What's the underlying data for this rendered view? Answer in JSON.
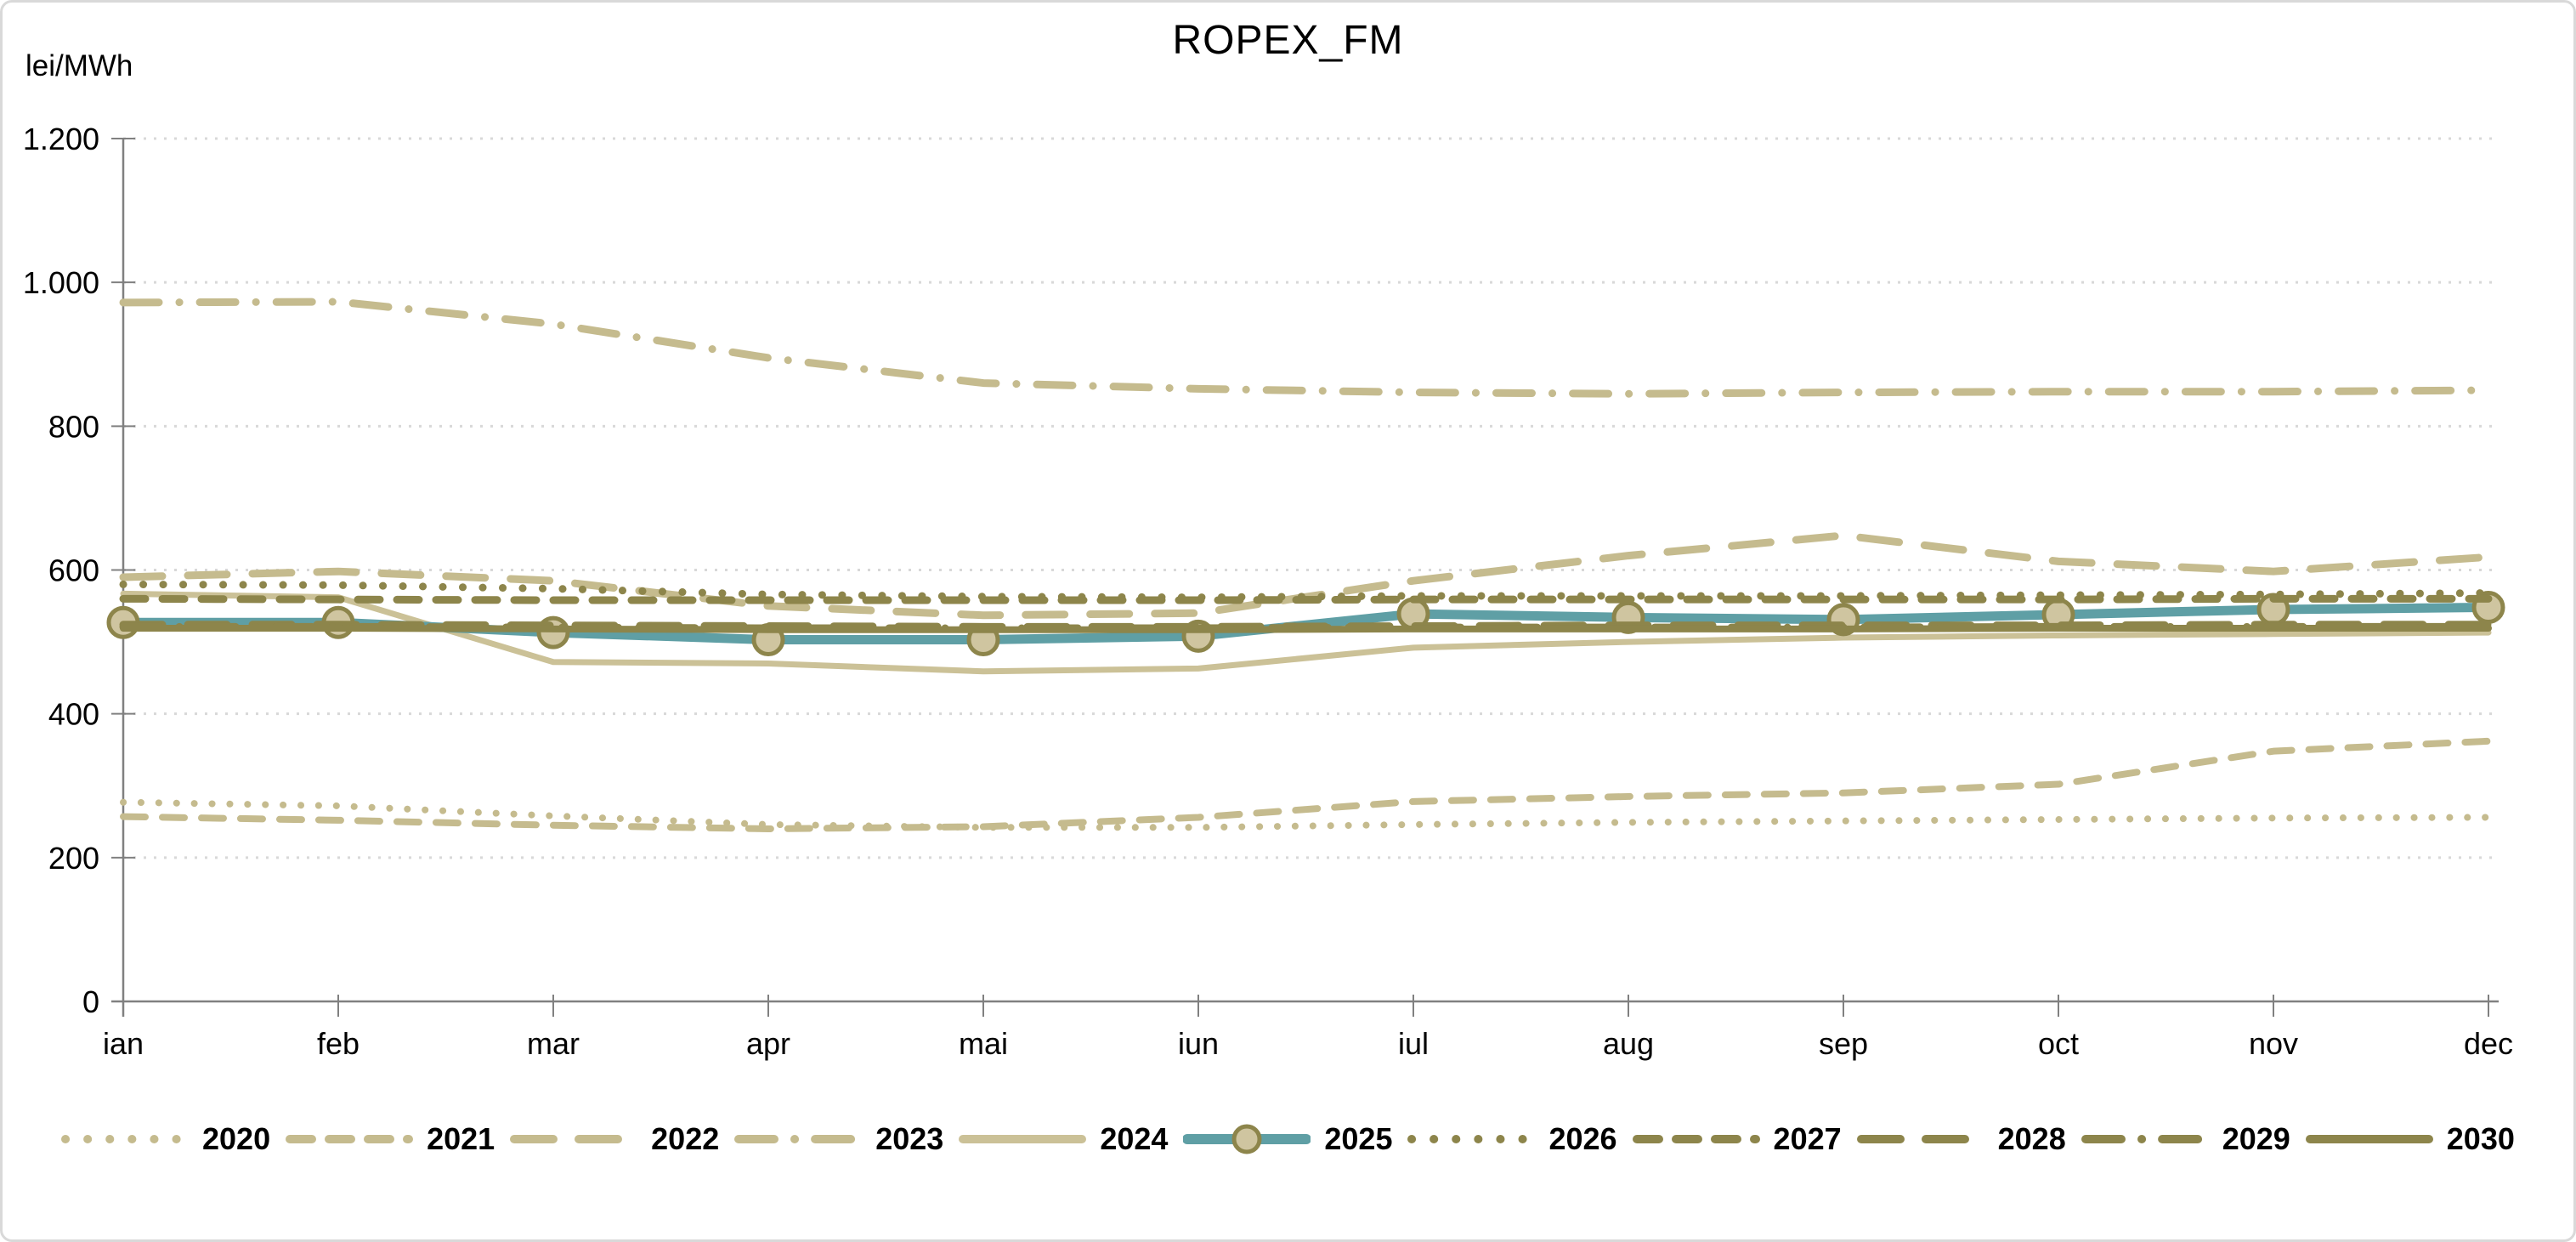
{
  "frame": {
    "title": "ROPEX_FM",
    "y_unit": "lei/MWh"
  },
  "chart_data": {
    "type": "line",
    "title": "ROPEX_FM",
    "ylabel": "lei/MWh",
    "xlabel": "",
    "grid": "horizontal-dotted",
    "legend_position": "bottom",
    "ylim": [
      0,
      1200
    ],
    "ytick_values": [
      0,
      200,
      400,
      600,
      800,
      1000,
      1200
    ],
    "ytick_labels": [
      "0",
      "200",
      "400",
      "600",
      "800",
      "1.000",
      "1.200"
    ],
    "categories": [
      "ian",
      "feb",
      "mar",
      "apr",
      "mai",
      "iun",
      "iul",
      "aug",
      "sep",
      "oct",
      "nov",
      "dec"
    ],
    "colors": {
      "khaki": "#c5bb8e",
      "olive": "#8d854b",
      "teal": "#5f9fa5",
      "marker_fill": "#cfc5a0",
      "grid": "#d8d8d8",
      "axis": "#808080",
      "text": "#000000"
    },
    "series": [
      {
        "name": "2020",
        "color": "#c5bb8e",
        "style": "dot",
        "width": 8,
        "values": [
          277,
          272,
          258,
          246,
          242,
          242,
          246,
          249,
          251,
          253,
          255,
          256
        ]
      },
      {
        "name": "2021",
        "color": "#c5bb8e",
        "style": "dash",
        "width": 8,
        "values": [
          257,
          252,
          245,
          240,
          243,
          256,
          278,
          285,
          290,
          302,
          348,
          362
        ]
      },
      {
        "name": "2022",
        "color": "#c5bb8e",
        "style": "long-dash",
        "width": 9,
        "values": [
          590,
          598,
          585,
          550,
          537,
          540,
          585,
          620,
          648,
          612,
          598,
          618
        ]
      },
      {
        "name": "2023",
        "color": "#c5bb8e",
        "style": "dash-dot",
        "width": 9,
        "values": [
          972,
          973,
          942,
          895,
          860,
          852,
          847,
          845,
          847,
          848,
          848,
          850
        ]
      },
      {
        "name": "2024",
        "color": "#cbc197",
        "style": "solid",
        "width": 7,
        "values": [
          567,
          562,
          472,
          470,
          459,
          463,
          492,
          500,
          506,
          509,
          511,
          513
        ]
      },
      {
        "name": "2025",
        "color": "#5f9fa5",
        "style": "solid-marker",
        "width": 11,
        "marker": {
          "fill": "#cfc5a0",
          "stroke": "#8d854b",
          "radius": 17
        },
        "values": [
          527,
          527,
          513,
          503,
          503,
          508,
          539,
          534,
          531,
          538,
          545,
          548
        ]
      },
      {
        "name": "2026",
        "color": "#8d854b",
        "style": "dot",
        "width": 9,
        "values": [
          580,
          579,
          574,
          566,
          563,
          562,
          564,
          564,
          564,
          565,
          566,
          568
        ]
      },
      {
        "name": "2027",
        "color": "#8d854b",
        "style": "dash",
        "width": 9,
        "values": [
          560,
          559,
          558,
          558,
          558,
          558,
          559,
          559,
          559,
          559,
          560,
          560
        ]
      },
      {
        "name": "2028",
        "color": "#8d854b",
        "style": "long-dash",
        "width": 9,
        "values": [
          524,
          524,
          523,
          522,
          521,
          521,
          522,
          523,
          523,
          523,
          524,
          524
        ]
      },
      {
        "name": "2029",
        "color": "#8d854b",
        "style": "dash-dot",
        "width": 9,
        "values": [
          521,
          521,
          520,
          519,
          519,
          519,
          520,
          520,
          520,
          521,
          521,
          521
        ]
      },
      {
        "name": "2030",
        "color": "#8d854b",
        "style": "solid",
        "width": 8,
        "values": [
          519,
          519,
          518,
          517,
          517,
          517,
          518,
          518,
          518,
          519,
          519,
          519
        ]
      }
    ]
  }
}
